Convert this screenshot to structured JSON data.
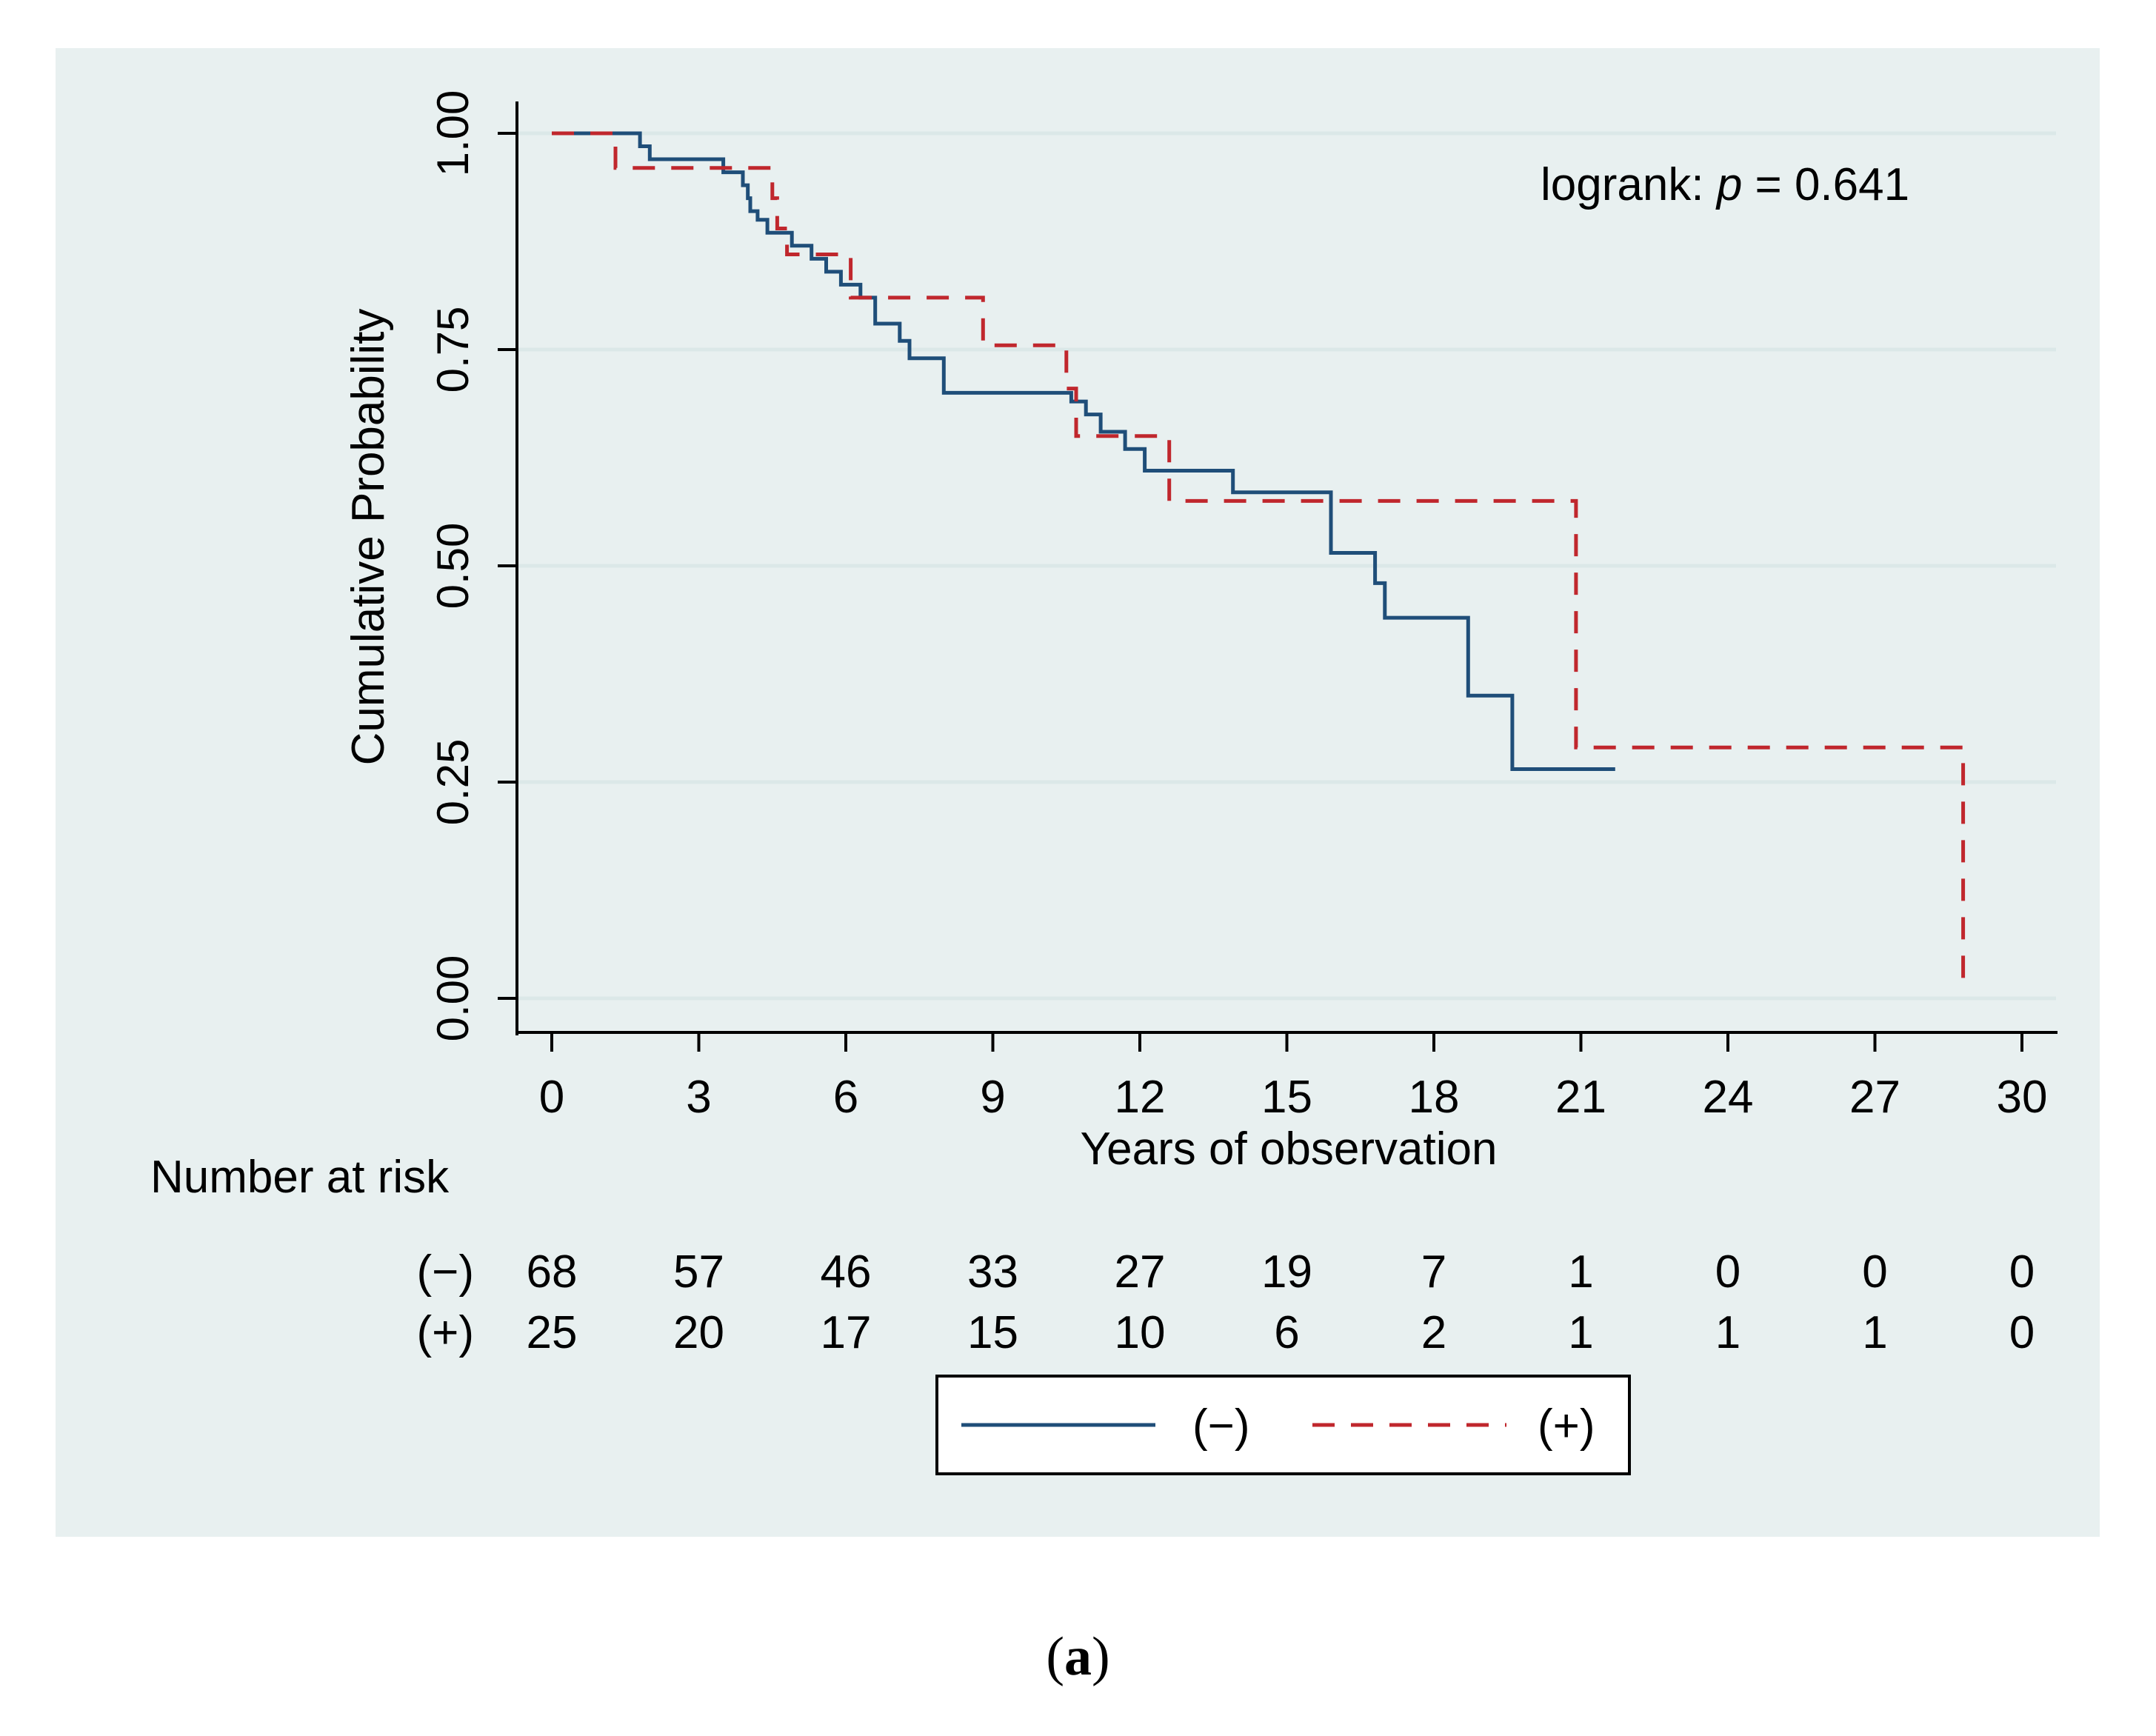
{
  "chart_data": {
    "type": "line",
    "title": "",
    "xlabel": "Years of observation",
    "ylabel": "Cumulative Probability",
    "xlim": [
      0,
      30
    ],
    "ylim": [
      0,
      1
    ],
    "x_ticks": [
      "0",
      "3",
      "6",
      "9",
      "12",
      "15",
      "18",
      "21",
      "24",
      "27",
      "30"
    ],
    "y_ticks": [
      "0.00",
      "0.25",
      "0.50",
      "0.75",
      "1.00"
    ],
    "annotation": {
      "prefix": "logrank: ",
      "italic": "p",
      "suffix": " = 0.641"
    },
    "series": [
      {
        "name": "(−)",
        "color": "#1f4e79",
        "style": "solid",
        "steps": [
          [
            0,
            1.0
          ],
          [
            1.8,
            0.985
          ],
          [
            2.0,
            0.97
          ],
          [
            3.5,
            0.955
          ],
          [
            3.9,
            0.94
          ],
          [
            4.0,
            0.925
          ],
          [
            4.05,
            0.91
          ],
          [
            4.2,
            0.9
          ],
          [
            4.4,
            0.885
          ],
          [
            4.9,
            0.87
          ],
          [
            5.3,
            0.855
          ],
          [
            5.6,
            0.84
          ],
          [
            5.9,
            0.825
          ],
          [
            6.3,
            0.81
          ],
          [
            6.6,
            0.78
          ],
          [
            7.1,
            0.76
          ],
          [
            7.3,
            0.74
          ],
          [
            8.0,
            0.7
          ],
          [
            10.6,
            0.69
          ],
          [
            10.9,
            0.675
          ],
          [
            11.2,
            0.655
          ],
          [
            11.7,
            0.635
          ],
          [
            12.1,
            0.61
          ],
          [
            13.9,
            0.585
          ],
          [
            15.9,
            0.515
          ],
          [
            16.8,
            0.48
          ],
          [
            17.0,
            0.44
          ],
          [
            18.7,
            0.35
          ],
          [
            19.6,
            0.265
          ],
          [
            21.7,
            0.265
          ]
        ]
      },
      {
        "name": "(+)",
        "color": "#c0272d",
        "style": "dashed",
        "steps": [
          [
            0,
            1.0
          ],
          [
            1.3,
            0.96
          ],
          [
            4.5,
            0.925
          ],
          [
            4.6,
            0.89
          ],
          [
            4.8,
            0.86
          ],
          [
            6.1,
            0.81
          ],
          [
            8.8,
            0.755
          ],
          [
            10.5,
            0.705
          ],
          [
            10.7,
            0.65
          ],
          [
            12.6,
            0.575
          ],
          [
            20.9,
            0.29
          ],
          [
            28.8,
            0.005
          ]
        ]
      }
    ]
  },
  "risk_table": {
    "title": "Number at risk",
    "rows": [
      {
        "label": "(−)",
        "values": [
          "68",
          "57",
          "46",
          "33",
          "27",
          "19",
          "7",
          "1",
          "0",
          "0",
          "0"
        ]
      },
      {
        "label": "(+)",
        "values": [
          "25",
          "20",
          "17",
          "15",
          "10",
          "6",
          "2",
          "1",
          "1",
          "1",
          "0"
        ]
      }
    ]
  },
  "legend": {
    "placement": "bottom-center"
  },
  "caption": "a"
}
